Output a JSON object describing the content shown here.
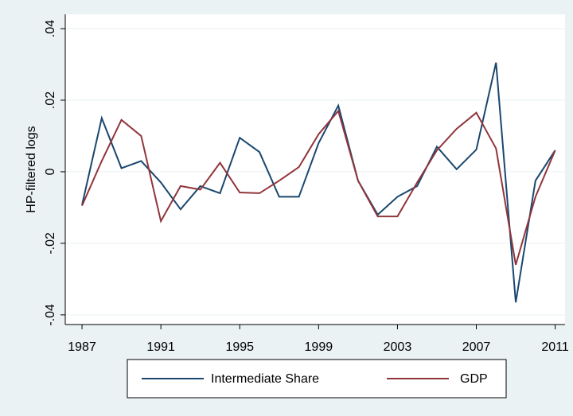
{
  "chart_data": {
    "type": "line",
    "y_label": "HP-filtered logs",
    "x": [
      1987,
      1988,
      1989,
      1990,
      1991,
      1992,
      1993,
      1994,
      1995,
      1996,
      1997,
      1998,
      1999,
      2000,
      2001,
      2002,
      2003,
      2004,
      2005,
      2006,
      2007,
      2008,
      2009,
      2010,
      2011
    ],
    "series": [
      {
        "name": "Intermediate Share",
        "color": "#1a476f",
        "values": [
          -0.0093,
          0.015,
          0.001,
          0.003,
          -0.003,
          -0.0105,
          -0.004,
          -0.006,
          0.0095,
          0.0055,
          -0.007,
          -0.007,
          0.008,
          0.0185,
          -0.0025,
          -0.012,
          -0.007,
          -0.004,
          0.007,
          0.0007,
          0.0062,
          0.0305,
          -0.0365,
          -0.0025,
          0.006
        ]
      },
      {
        "name": "GDP",
        "color": "#90353b",
        "values": [
          -0.0095,
          0.003,
          0.0145,
          0.01,
          -0.0138,
          -0.004,
          -0.005,
          0.0025,
          -0.0058,
          -0.006,
          -0.0025,
          0.0013,
          0.0105,
          0.017,
          -0.0025,
          -0.0125,
          -0.0125,
          -0.003,
          0.006,
          0.012,
          0.0165,
          0.0065,
          -0.026,
          -0.007,
          0.006
        ]
      }
    ],
    "xlim": [
      1986.15,
      2011.5
    ],
    "xticks": [
      1987,
      1991,
      1995,
      1999,
      2003,
      2007,
      2011
    ],
    "ylim": [
      -0.0427,
      0.044
    ],
    "yticks": [
      {
        "value": -0.04,
        "label": "-.04"
      },
      {
        "value": -0.02,
        "label": "-.02"
      },
      0,
      {
        "value": 0.02,
        "label": ".02"
      },
      {
        "value": 0.04,
        "label": ".04"
      }
    ],
    "grid": true,
    "legend": "bottom"
  }
}
